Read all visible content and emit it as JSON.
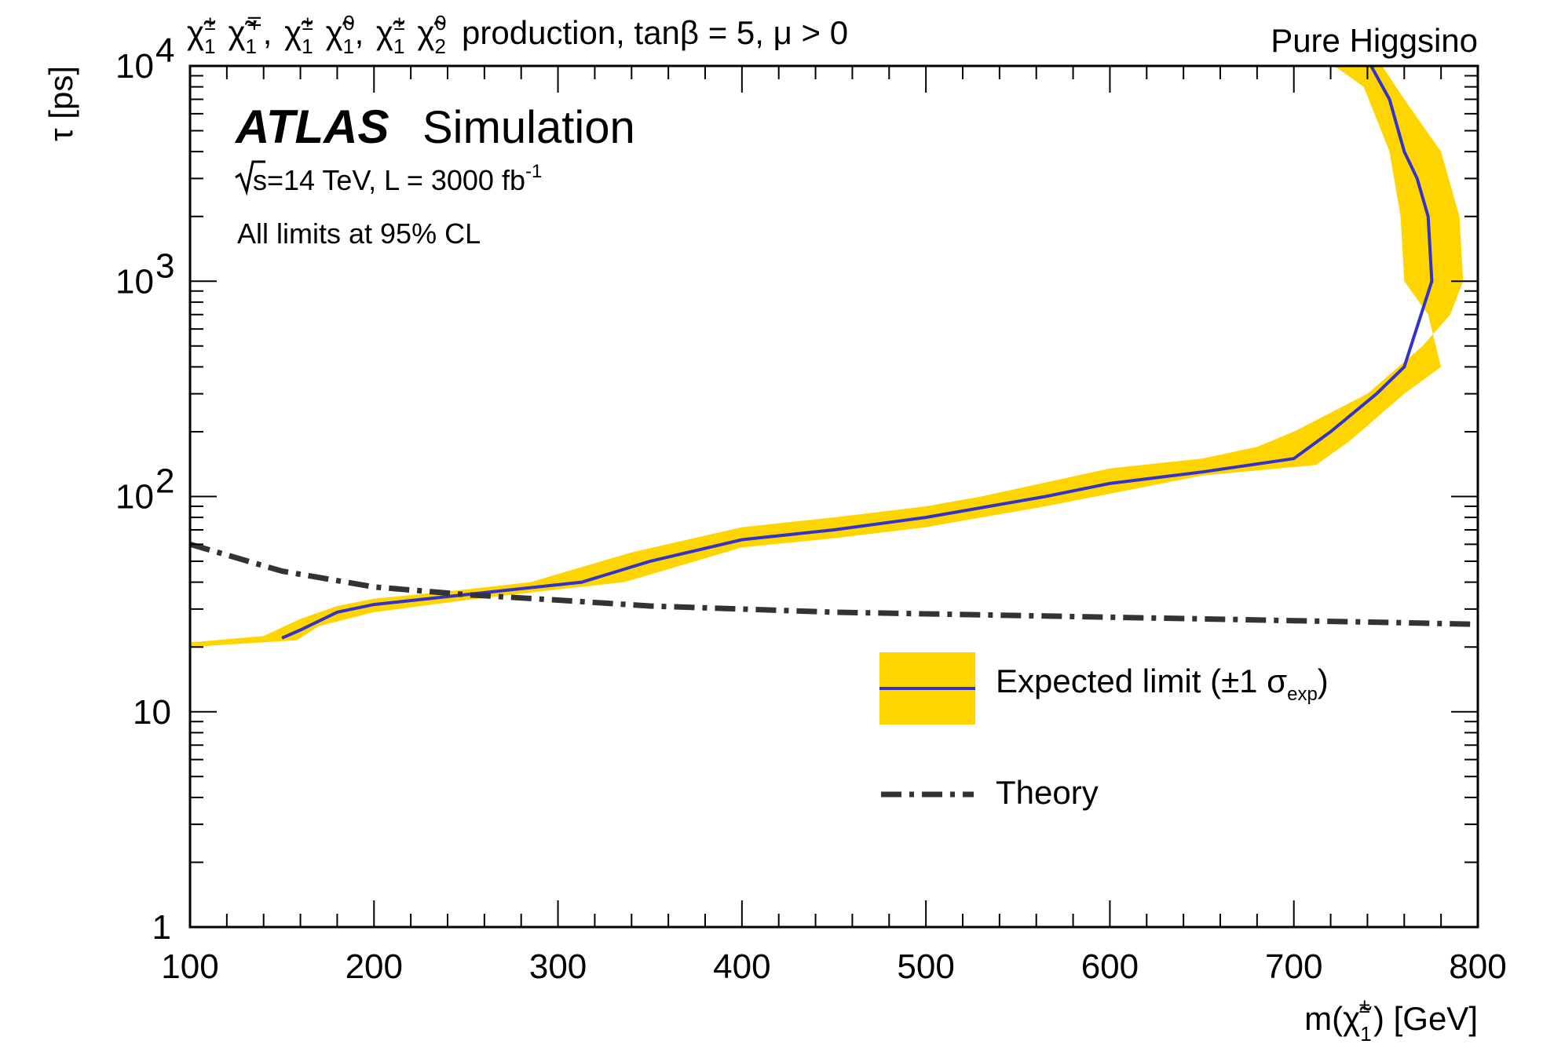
{
  "chart_data": {
    "type": "line",
    "title": "production, tanβ = 5, μ > 0",
    "title_particles": [
      "χ̃",
      "1",
      "±",
      "χ̃",
      "1",
      "∓",
      "χ̃",
      "1",
      "±",
      "χ̃",
      "1",
      "0",
      "χ̃",
      "1",
      "±",
      "χ̃",
      "2",
      "0"
    ],
    "corner_label": "Pure Higgsino",
    "experiment": "ATLAS",
    "experiment_sub": "Simulation",
    "energy_prefix": "s=14 TeV, L = 3000 fb",
    "energy_sup": "-1",
    "cl_text": "All limits at 95% CL",
    "xlabel_prefix": "m(",
    "xlabel_particle": "χ̃",
    "xlabel_sub": "1",
    "xlabel_sup": "±",
    "xlabel_suffix": ") [GeV]",
    "ylabel": "τ [ps]",
    "xlim": [
      100,
      800
    ],
    "ylim": [
      1,
      10000
    ],
    "yscale": "log",
    "x_ticks": [
      100,
      200,
      300,
      400,
      500,
      600,
      700,
      800
    ],
    "y_ticks": [
      {
        "value": 1,
        "base": "1",
        "exp": ""
      },
      {
        "value": 10,
        "base": "10",
        "exp": ""
      },
      {
        "value": 100,
        "base": "10",
        "exp": "2"
      },
      {
        "value": 1000,
        "base": "10",
        "exp": "3"
      },
      {
        "value": 10000,
        "base": "10",
        "exp": "4"
      }
    ],
    "legend": [
      {
        "label": "Expected limit (±1 σ",
        "sub": "exp",
        "suffix": ")",
        "style": "band"
      },
      {
        "label": "Theory",
        "style": "dashdot"
      }
    ],
    "colors": {
      "band": "#ffd500",
      "expected": "#3333cc",
      "theory": "#333333"
    },
    "series": [
      {
        "name": "Expected limit",
        "points": [
          [
            150,
            22
          ],
          [
            160,
            24
          ],
          [
            180,
            29
          ],
          [
            200,
            31.5
          ],
          [
            250,
            35
          ],
          [
            313,
            40
          ],
          [
            350,
            50
          ],
          [
            400,
            63
          ],
          [
            450,
            70
          ],
          [
            500,
            80
          ],
          [
            565,
            100
          ],
          [
            600,
            115
          ],
          [
            650,
            130
          ],
          [
            700,
            150
          ],
          [
            720,
            200
          ],
          [
            745,
            300
          ],
          [
            760,
            400
          ],
          [
            775,
            1000
          ],
          [
            773,
            2000
          ],
          [
            767,
            3000
          ],
          [
            760,
            4000
          ],
          [
            752,
            7000
          ],
          [
            742,
            10000
          ]
        ]
      },
      {
        "name": "Expected limit +1σ edge",
        "points": [
          [
            100,
            21
          ],
          [
            140,
            22.5
          ],
          [
            160,
            27
          ],
          [
            180,
            31
          ],
          [
            200,
            33.5
          ],
          [
            250,
            37
          ],
          [
            285,
            40
          ],
          [
            340,
            55
          ],
          [
            400,
            72
          ],
          [
            450,
            80
          ],
          [
            500,
            90
          ],
          [
            530,
            100
          ],
          [
            600,
            135
          ],
          [
            650,
            150
          ],
          [
            680,
            170
          ],
          [
            700,
            200
          ],
          [
            740,
            300
          ],
          [
            770,
            500
          ],
          [
            785,
            700
          ],
          [
            792,
            1000
          ],
          [
            790,
            2000
          ],
          [
            780,
            4000
          ],
          [
            760,
            7000
          ],
          [
            748,
            10000
          ]
        ]
      },
      {
        "name": "Expected limit -1σ edge",
        "points": [
          [
            100,
            20
          ],
          [
            158,
            21.5
          ],
          [
            170,
            25
          ],
          [
            200,
            29
          ],
          [
            250,
            33
          ],
          [
            300,
            37
          ],
          [
            336,
            40
          ],
          [
            400,
            58
          ],
          [
            450,
            64
          ],
          [
            500,
            72
          ],
          [
            565,
            90
          ],
          [
            600,
            103
          ],
          [
            650,
            125
          ],
          [
            712,
            140
          ],
          [
            730,
            180
          ],
          [
            760,
            300
          ],
          [
            780,
            400
          ],
          [
            773,
            700
          ],
          [
            760,
            1000
          ],
          [
            758,
            2000
          ],
          [
            752,
            4000
          ],
          [
            738,
            8000
          ],
          [
            722,
            10000
          ]
        ]
      },
      {
        "name": "Theory",
        "points": [
          [
            100,
            60
          ],
          [
            150,
            45
          ],
          [
            200,
            38
          ],
          [
            250,
            35
          ],
          [
            300,
            33
          ],
          [
            350,
            31
          ],
          [
            400,
            30
          ],
          [
            450,
            29
          ],
          [
            500,
            28.5
          ],
          [
            550,
            28
          ],
          [
            600,
            27.5
          ],
          [
            650,
            27
          ],
          [
            700,
            26.5
          ],
          [
            750,
            26
          ],
          [
            800,
            25.5
          ]
        ]
      }
    ]
  }
}
